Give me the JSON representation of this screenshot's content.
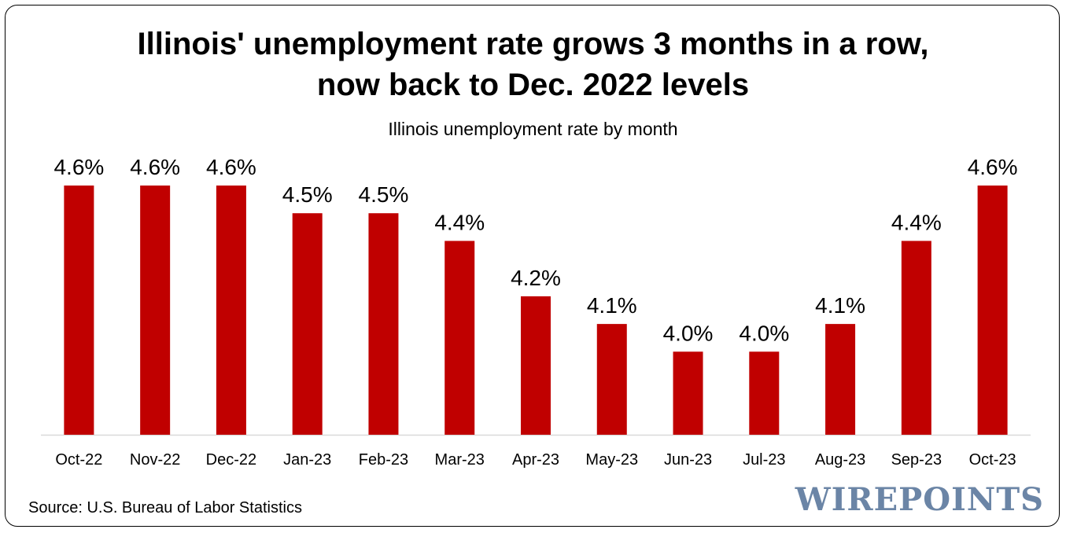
{
  "title_line1": "Illinois' unemployment rate grows 3 months in a row,",
  "title_line2": "now back to Dec. 2022 levels",
  "subtitle": "Illinois unemployment rate by month",
  "source": "Source: U.S. Bureau of Labor Statistics",
  "logo": "WIREPOINTS",
  "colors": {
    "bar": "#c00000",
    "axis": "#d9d9d9",
    "logo": "#6b85a6"
  },
  "chart_data": {
    "type": "bar",
    "title": "Illinois' unemployment rate grows 3 months in a row, now back to Dec. 2022 levels",
    "subtitle": "Illinois unemployment rate by month",
    "xlabel": "",
    "ylabel": "",
    "categories": [
      "Oct-22",
      "Nov-22",
      "Dec-22",
      "Jan-23",
      "Feb-23",
      "Mar-23",
      "Apr-23",
      "May-23",
      "Jun-23",
      "Jul-23",
      "Aug-23",
      "Sep-23",
      "Oct-23"
    ],
    "values": [
      4.6,
      4.6,
      4.6,
      4.5,
      4.5,
      4.4,
      4.2,
      4.1,
      4.0,
      4.0,
      4.1,
      4.4,
      4.6
    ],
    "labels": [
      "4.6%",
      "4.6%",
      "4.6%",
      "4.5%",
      "4.5%",
      "4.4%",
      "4.2%",
      "4.1%",
      "4.0%",
      "4.0%",
      "4.1%",
      "4.4%",
      "4.6%"
    ],
    "ylim": [
      3.7,
      4.6
    ],
    "grid": false,
    "legend": "none"
  }
}
